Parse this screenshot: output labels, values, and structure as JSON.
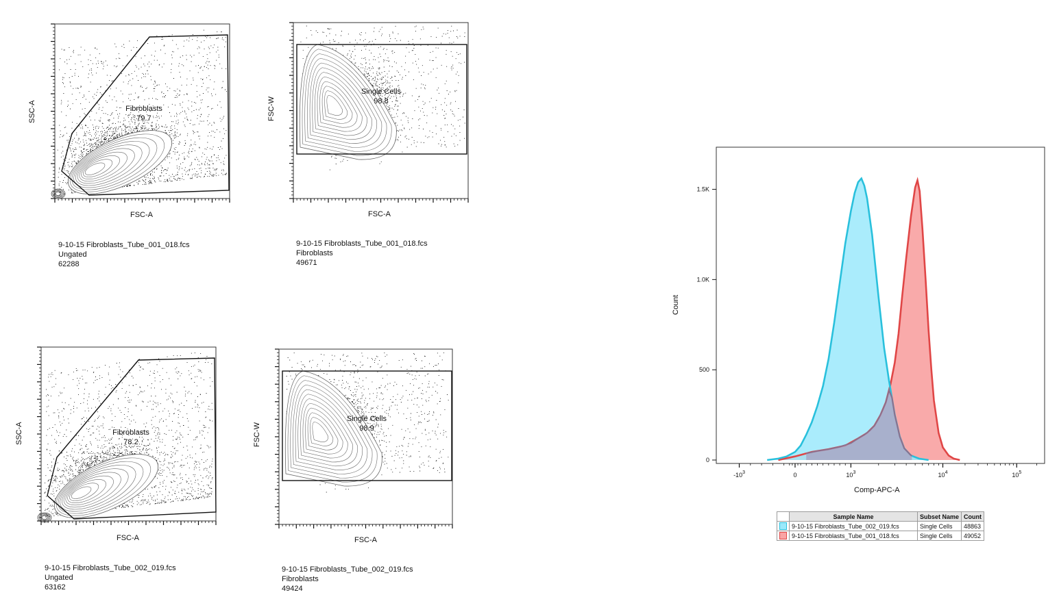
{
  "chart_data": [
    {
      "type": "scatter",
      "kind": "flow-density-contour",
      "xlabel": "FSC-A",
      "ylabel": "SSC-A",
      "gate": {
        "name": "Fibroblasts",
        "percent": "79.7",
        "shape": "polygon"
      },
      "sample": {
        "file": "9-10-15 Fibroblasts_Tube_001_018.fcs",
        "population": "Ungated",
        "events": "62288"
      }
    },
    {
      "type": "scatter",
      "kind": "flow-density-contour",
      "xlabel": "FSC-A",
      "ylabel": "FSC-W",
      "gate": {
        "name": "Single Cells",
        "percent": "98.8",
        "shape": "rectangle"
      },
      "sample": {
        "file": "9-10-15 Fibroblasts_Tube_001_018.fcs",
        "population": "Fibroblasts",
        "events": "49671"
      }
    },
    {
      "type": "scatter",
      "kind": "flow-density-contour",
      "xlabel": "FSC-A",
      "ylabel": "SSC-A",
      "gate": {
        "name": "Fibroblasts",
        "percent": "78.2",
        "shape": "polygon"
      },
      "sample": {
        "file": "9-10-15 Fibroblasts_Tube_002_019.fcs",
        "population": "Ungated",
        "events": "63162"
      }
    },
    {
      "type": "scatter",
      "kind": "flow-density-contour",
      "xlabel": "FSC-A",
      "ylabel": "FSC-W",
      "gate": {
        "name": "Single Cells",
        "percent": "98.9",
        "shape": "rectangle"
      },
      "sample": {
        "file": "9-10-15 Fibroblasts_Tube_002_019.fcs",
        "population": "Fibroblasts",
        "events": "49424"
      }
    },
    {
      "type": "area",
      "kind": "histogram",
      "xlabel": "Comp-APC-A",
      "ylabel": "Count",
      "xscale": "biexponential",
      "yticks": [
        {
          "value": 0,
          "label": "0"
        },
        {
          "value": 500,
          "label": "500"
        },
        {
          "value": 1000,
          "label": "1.0K"
        },
        {
          "value": 1500,
          "label": "1.5K"
        }
      ],
      "ylim": [
        0,
        1650
      ],
      "xticks": [
        "-10^3",
        "0",
        "10^3",
        "10^4",
        "10^5"
      ],
      "series": [
        {
          "name": "9-10-15 Fibroblasts_Tube_002_019.fcs",
          "subset": "Single Cells",
          "count": "48863",
          "fill": "#9be9fb",
          "stroke": "#29c0dc",
          "x": [
            -500,
            -300,
            -150,
            0,
            100,
            200,
            300,
            400,
            500,
            600,
            700,
            800,
            900,
            1000,
            1100,
            1200,
            1300,
            1400,
            1500,
            1700,
            2000,
            2300,
            2600,
            3000,
            3400,
            3800,
            4500,
            5500,
            7000
          ],
          "y": [
            0,
            8,
            20,
            45,
            80,
            140,
            210,
            300,
            410,
            560,
            760,
            980,
            1200,
            1380,
            1480,
            1540,
            1560,
            1520,
            1450,
            1250,
            900,
            620,
            440,
            250,
            130,
            65,
            25,
            8,
            0
          ]
        },
        {
          "name": "9-10-15 Fibroblasts_Tube_001_018.fcs",
          "subset": "Single Cells",
          "count": "49052",
          "fill": "#f9a5a5",
          "stroke": "#e04646",
          "x": [
            -300,
            0,
            300,
            600,
            900,
            1200,
            1500,
            1800,
            2100,
            2400,
            2700,
            3000,
            3300,
            3600,
            4000,
            4500,
            5000,
            5300,
            5600,
            6000,
            6500,
            7000,
            7500,
            8000,
            9000,
            10000,
            12000,
            14000,
            17000
          ],
          "y": [
            0,
            20,
            45,
            60,
            80,
            120,
            150,
            190,
            250,
            320,
            420,
            540,
            700,
            900,
            1120,
            1350,
            1510,
            1550,
            1490,
            1280,
            1000,
            720,
            500,
            330,
            150,
            70,
            25,
            8,
            0
          ]
        }
      ],
      "legend": {
        "headers": [
          "Sample Name",
          "Subset Name",
          "Count"
        ]
      }
    }
  ]
}
